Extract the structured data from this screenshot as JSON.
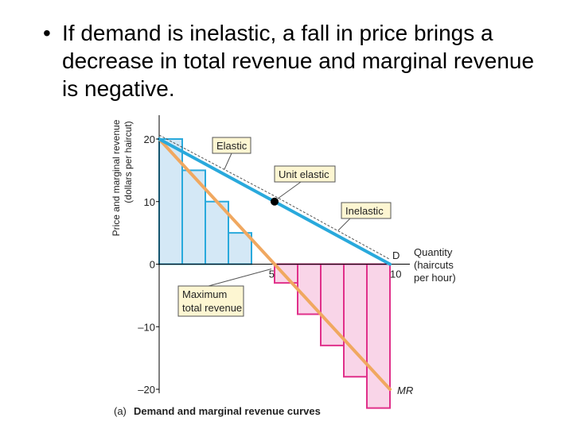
{
  "slide": {
    "bullet": "•",
    "text": "If demand is inelastic, a fall in price brings a decrease in total revenue and marginal revenue is negative."
  },
  "chart_data": {
    "type": "line",
    "caption_prefix": "(a)",
    "caption": "Demand and marginal revenue curves",
    "ylabel_line1": "Price and marginal revenue",
    "ylabel_line2": "(dollars per haircut)",
    "xlabel_lines": [
      "Quantity",
      "(haircuts",
      "per hour)"
    ],
    "xlim": [
      0,
      10
    ],
    "ylim": [
      -20,
      20
    ],
    "y_ticks": [
      "20",
      "10",
      "0",
      "–10",
      "–20"
    ],
    "x_ticks": [
      "5",
      "10"
    ],
    "series": [
      {
        "name": "D",
        "x": [
          0,
          10
        ],
        "y": [
          20,
          0
        ]
      },
      {
        "name": "MR",
        "x": [
          0,
          10
        ],
        "y": [
          20,
          -20
        ]
      }
    ],
    "tr_bars": {
      "x_start": [
        0,
        1,
        2,
        3,
        4,
        5,
        6,
        7,
        8,
        9
      ],
      "values": [
        20,
        15,
        10,
        5,
        0,
        -3,
        -8,
        -13,
        -18,
        -23
      ]
    },
    "unit_elastic_point": {
      "x": 5,
      "y": 10
    },
    "annotations": {
      "elastic": "Elastic",
      "unit_elastic": "Unit elastic",
      "inelastic": "Inelastic",
      "max_tr_line1": "Maximum",
      "max_tr_line2": "total revenue"
    },
    "colors": {
      "demand": "#29a9dc",
      "mr": "#f0a860",
      "positive_fill": "#d4e8f6",
      "positive_stroke": "#29a9dc",
      "negative_fill": "#f9d5e8",
      "negative_stroke": "#e0308a"
    }
  }
}
